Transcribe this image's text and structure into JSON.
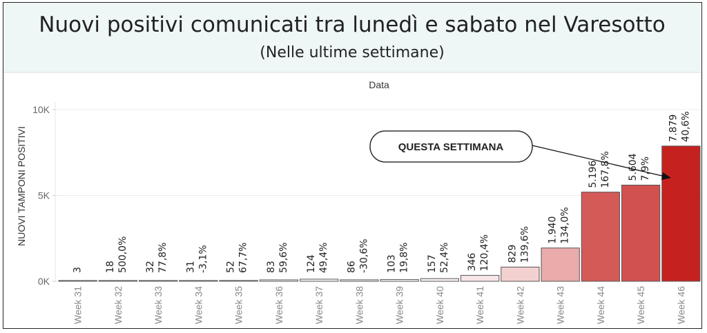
{
  "header": {
    "title": "Nuovi positivi comunicati tra lunedì e sabato nel Varesotto",
    "subtitle": "(Nelle ultime settimane)"
  },
  "annotation": {
    "text": "QUESTA SETTIMANA"
  },
  "chart_data": {
    "type": "bar",
    "title": "Nuovi positivi comunicati tra lunedì e sabato nel Varesotto",
    "subtitle": "(Nelle ultime settimane)",
    "xlabel": "Data",
    "ylabel": "NUOVI TAMPONI POSITIVI",
    "ylim": [
      0,
      10000
    ],
    "yticks": [
      0,
      5000,
      10000
    ],
    "ytick_labels": [
      "0K",
      "5K",
      "10K"
    ],
    "grid": true,
    "categories": [
      "Week 31",
      "Week 32",
      "Week 33",
      "Week 34",
      "Week 35",
      "Week 36",
      "Week 37",
      "Week 38",
      "Week 39",
      "Week 40",
      "Week 41",
      "Week 42",
      "Week 43",
      "Week 44",
      "Week 45",
      "Week 46"
    ],
    "values": [
      3,
      18,
      32,
      31,
      52,
      83,
      124,
      86,
      103,
      157,
      346,
      829,
      1940,
      5196,
      5604,
      7879
    ],
    "value_labels": [
      "3",
      "18",
      "32",
      "31",
      "52",
      "83",
      "124",
      "86",
      "103",
      "157",
      "346",
      "829",
      "1.940",
      "5.196",
      "5.604",
      "7.879"
    ],
    "change_labels": [
      "",
      "500,0%",
      "77,8%",
      "-3,1%",
      "67,7%",
      "59,6%",
      "49,4%",
      "-30,6%",
      "19,8%",
      "52,4%",
      "120,4%",
      "139,6%",
      "134,0%",
      "167,8%",
      "7,9%",
      "40,6%"
    ],
    "colors": {
      "low": "#ffffff",
      "high": "#c5221f",
      "outline": "#555555"
    }
  }
}
